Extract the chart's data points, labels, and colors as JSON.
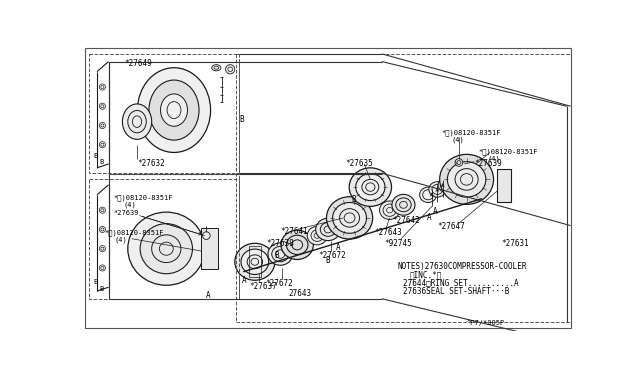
{
  "bg_color": "#ffffff",
  "line_color": "#1a1a1a",
  "text_color": "#000000",
  "border_color": "#333333",
  "notes_lines": [
    "NOTES)27630COMPRESSOR-COOLER",
    "〈INC.*〉",
    "27644□RING SET..........A",
    "27636SEAL SET-SHAFT···B"
  ],
  "footer": "^P7/*005P"
}
